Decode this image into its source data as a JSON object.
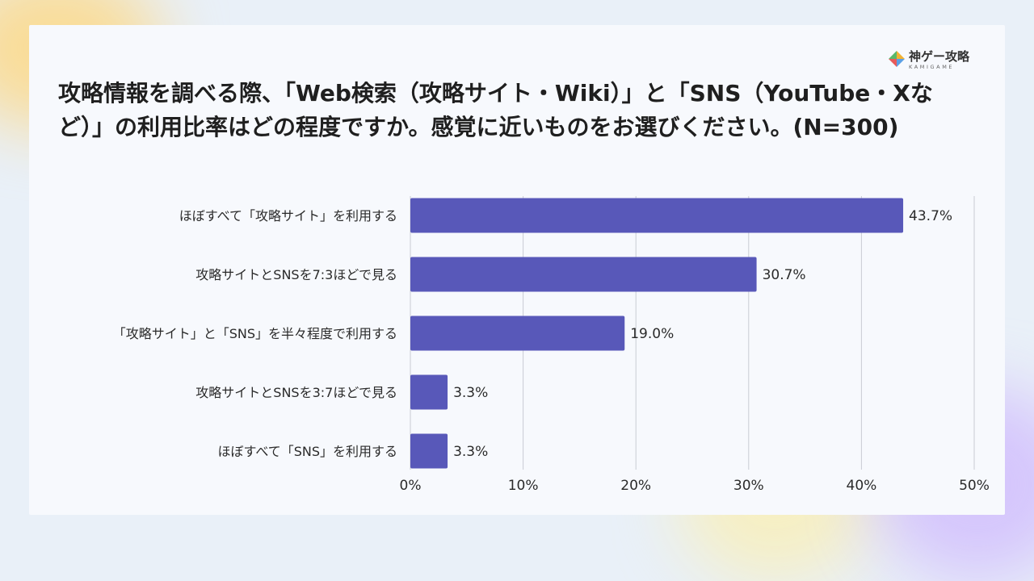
{
  "logo": {
    "name": "神ゲー攻略",
    "subtitle": "KAMIGAME"
  },
  "chart_data": {
    "type": "bar",
    "orientation": "horizontal",
    "title": "攻略情報を調べる際、「Web検索（攻略サイト・Wiki）」と「SNS（YouTube・Xなど）」の利用比率はどの程度ですか。感覚に近いものをお選びください。(N=300)",
    "categories": [
      "ほぼすべて「攻略サイト」を利用する",
      "攻略サイトとSNSを7:3ほどで見る",
      "「攻略サイト」と「SNS」を半々程度で利用する",
      "攻略サイトとSNSを3:7ほどで見る",
      "ほぼすべて「SNS」を利用する"
    ],
    "values": [
      43.7,
      30.7,
      19.0,
      3.3,
      3.3
    ],
    "value_labels": [
      "43.7%",
      "30.7%",
      "19.0%",
      "3.3%",
      "3.3%"
    ],
    "xlim": [
      0,
      50
    ],
    "x_ticks": [
      0,
      10,
      20,
      30,
      40,
      50
    ],
    "x_tick_labels": [
      "0%",
      "10%",
      "20%",
      "30%",
      "40%",
      "50%"
    ],
    "grid": "vertical",
    "legend": "none",
    "bar_color": "#5858b9"
  }
}
